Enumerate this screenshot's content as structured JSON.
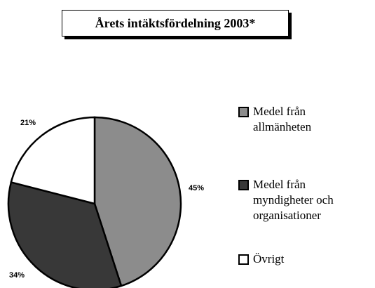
{
  "chart_data": {
    "type": "pie",
    "title": "Årets intäktsfördelning 2003*",
    "categories": [
      "Medel från allmänheten",
      "Medel från myndigheter och organisationer",
      "Övrigt"
    ],
    "values": [
      45,
      34,
      21
    ],
    "value_labels": [
      "45%",
      "34%",
      "21%"
    ],
    "colors": [
      "#8c8c8c",
      "#383838",
      "#ffffff"
    ],
    "legend": "right"
  }
}
